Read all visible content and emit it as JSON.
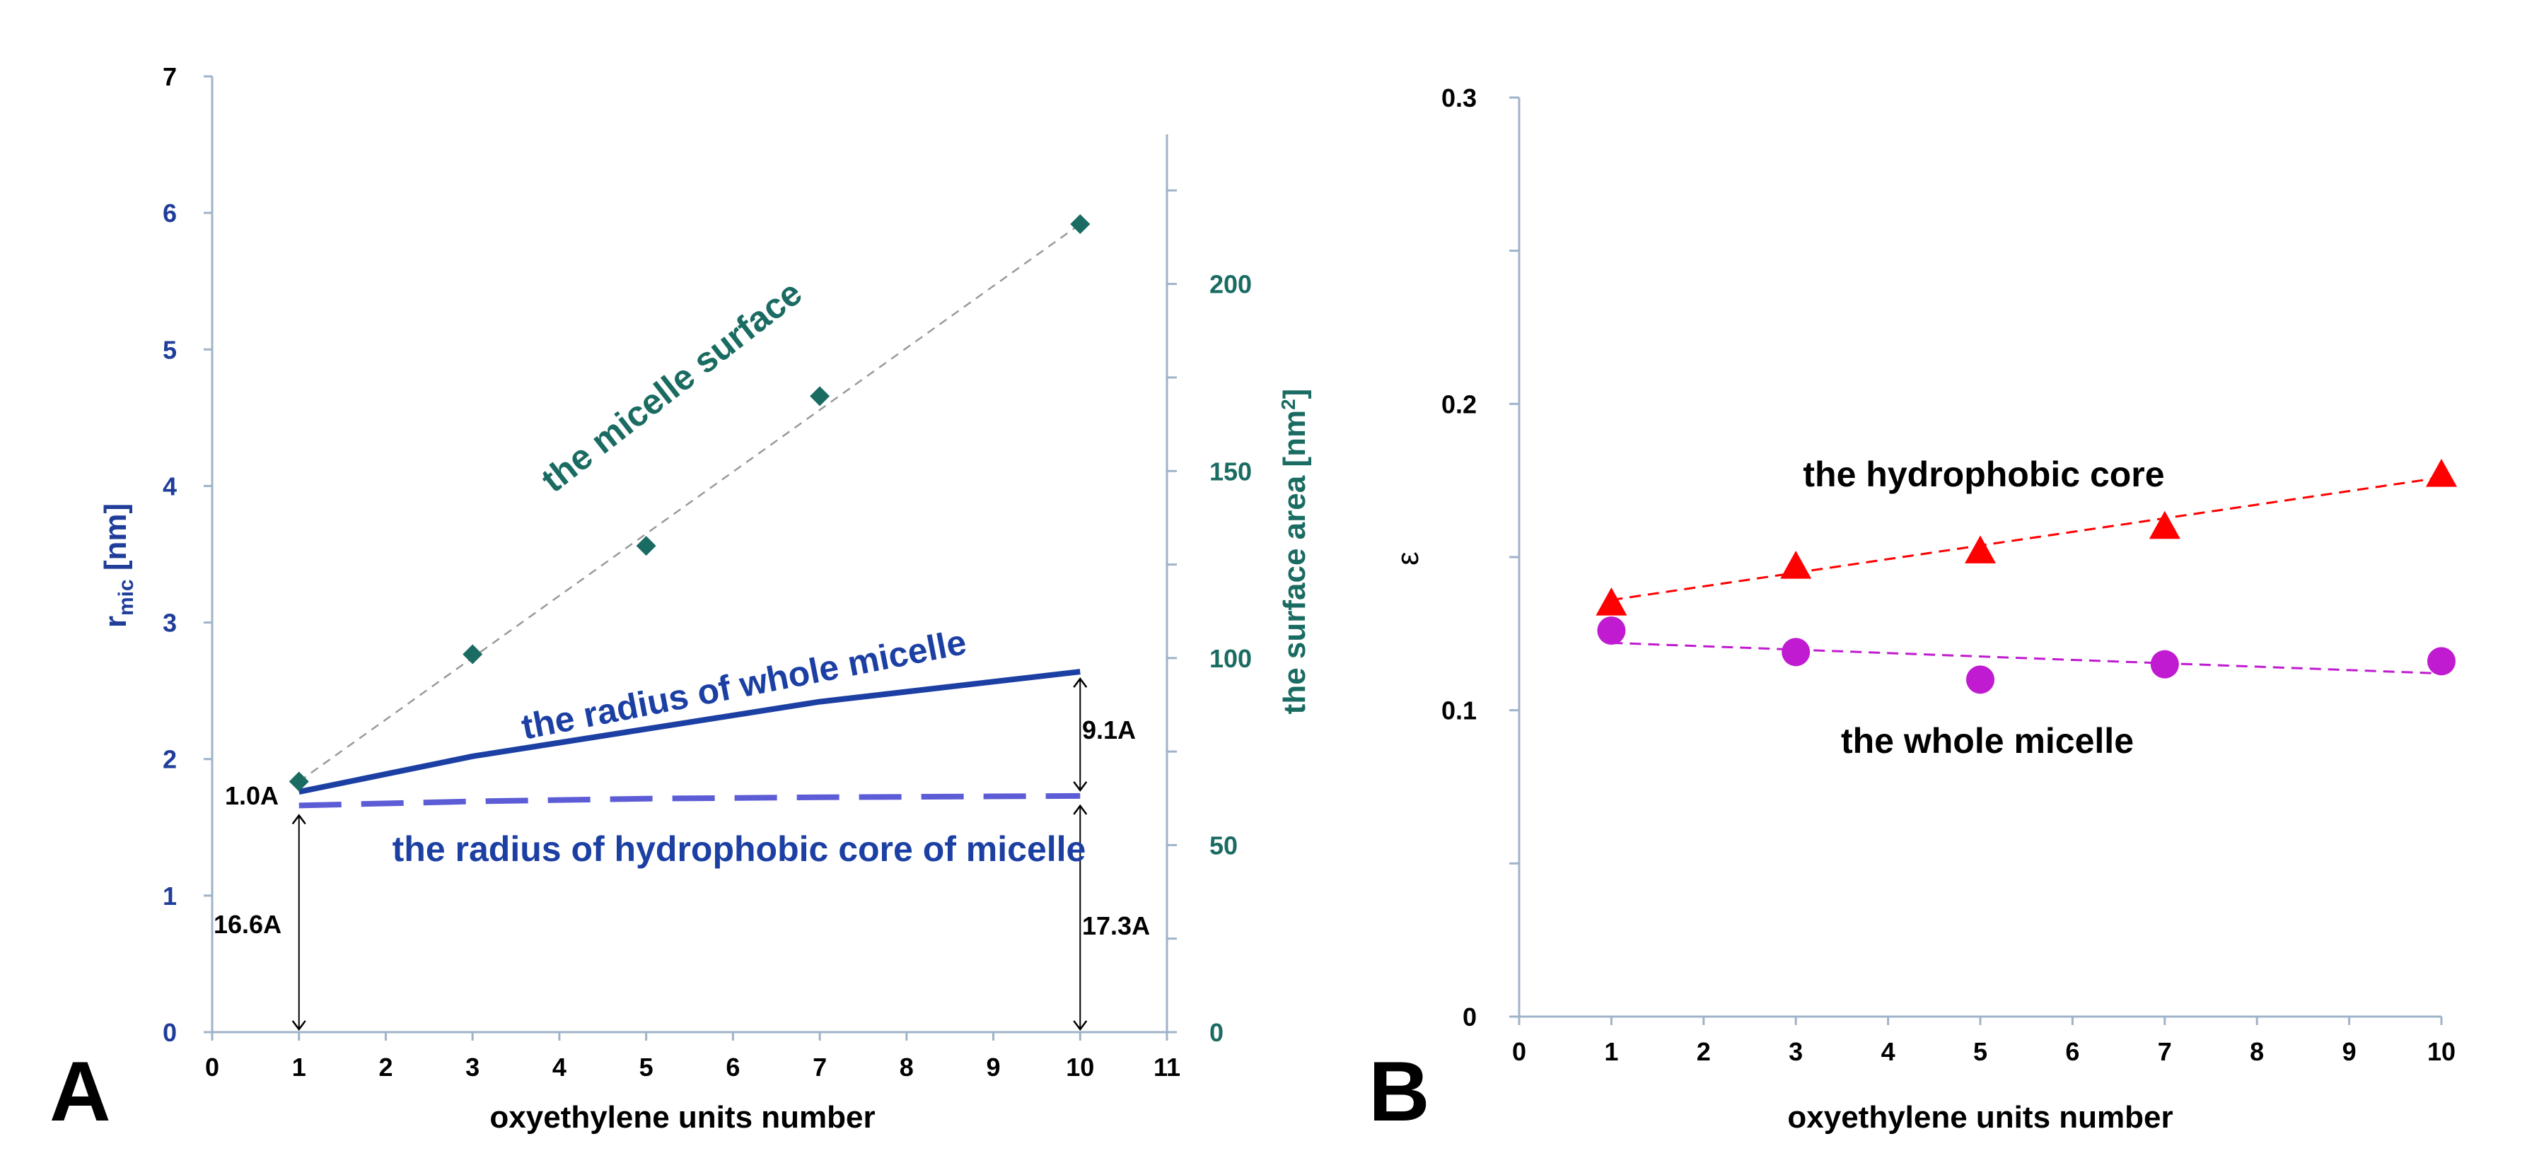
{
  "figure": {
    "panels": [
      "A",
      "B"
    ]
  },
  "colors": {
    "blue_axis": "#1f3d99",
    "teal": "#1a6b62",
    "whole_line": "#1c3fa3",
    "core_line": "#5c5cd6",
    "triangle": "#ff0000",
    "circle": "#c01bd0",
    "axis_line": "#9fb3c8"
  },
  "chart_data": [
    {
      "type": "line",
      "panel": "A",
      "xlabel": "oxyethylene units number",
      "ylabel_left": {
        "main": "r",
        "sub": "mic",
        "unit": " [nm]"
      },
      "ylabel_right": {
        "main": "the surface area [nm",
        "sup": "2",
        "end": "]"
      },
      "xlim": [
        0,
        11
      ],
      "ylim_left": [
        0,
        7
      ],
      "ylim_right": [
        0,
        240
      ],
      "x_ticks": [
        "0",
        "1",
        "2",
        "3",
        "4",
        "5",
        "6",
        "7",
        "8",
        "9",
        "10",
        "11"
      ],
      "y_left_ticks": [
        "0",
        "1",
        "2",
        "3",
        "4",
        "5",
        "6",
        "7"
      ],
      "y_right_ticks": [
        "0",
        "50",
        "100",
        "150",
        "200"
      ],
      "series": [
        {
          "name": "the radius of whole micelle",
          "axis": "left",
          "style": "solid",
          "x": [
            1,
            3,
            5,
            7,
            10
          ],
          "y": [
            1.76,
            2.02,
            2.22,
            2.42,
            2.64
          ]
        },
        {
          "name": "the radius of hydrophobic core of micelle",
          "axis": "left",
          "style": "dashed",
          "x": [
            1,
            3,
            5,
            7,
            10
          ],
          "y": [
            1.66,
            1.69,
            1.71,
            1.72,
            1.73
          ]
        },
        {
          "name": "the micelle surface",
          "axis": "right",
          "style": "markers",
          "x": [
            1,
            3,
            5,
            7,
            10
          ],
          "y": [
            67,
            101,
            130,
            170,
            216
          ],
          "trend": [
            [
              1,
              67
            ],
            [
              10,
              216
            ]
          ]
        }
      ],
      "annotations": {
        "one_a": "1.0A",
        "sixteen_a": "16.6A",
        "nine_a": "9.1A",
        "seventeen_a": "17.3A"
      }
    },
    {
      "type": "scatter",
      "panel": "B",
      "xlabel": "oxyethylene units number",
      "ylabel": "ε",
      "xlim": [
        0,
        10
      ],
      "ylim": [
        0,
        0.3
      ],
      "x_ticks": [
        "0",
        "1",
        "2",
        "3",
        "4",
        "5",
        "6",
        "7",
        "8",
        "9",
        "10"
      ],
      "y_ticks_labeled": [
        "0",
        "0.1",
        "0.2",
        "0.3"
      ],
      "series": [
        {
          "name": "the hydrophobic core",
          "marker": "triangle",
          "x": [
            1,
            3,
            5,
            7,
            10
          ],
          "y": [
            0.135,
            0.147,
            0.152,
            0.16,
            0.177
          ],
          "trend": [
            [
              1,
              0.136
            ],
            [
              10,
              0.176
            ]
          ]
        },
        {
          "name": "the whole micelle",
          "marker": "circle",
          "x": [
            1,
            3,
            5,
            7,
            10
          ],
          "y": [
            0.126,
            0.119,
            0.11,
            0.115,
            0.116
          ],
          "trend": [
            [
              1,
              0.122
            ],
            [
              10,
              0.112
            ]
          ]
        }
      ]
    }
  ]
}
